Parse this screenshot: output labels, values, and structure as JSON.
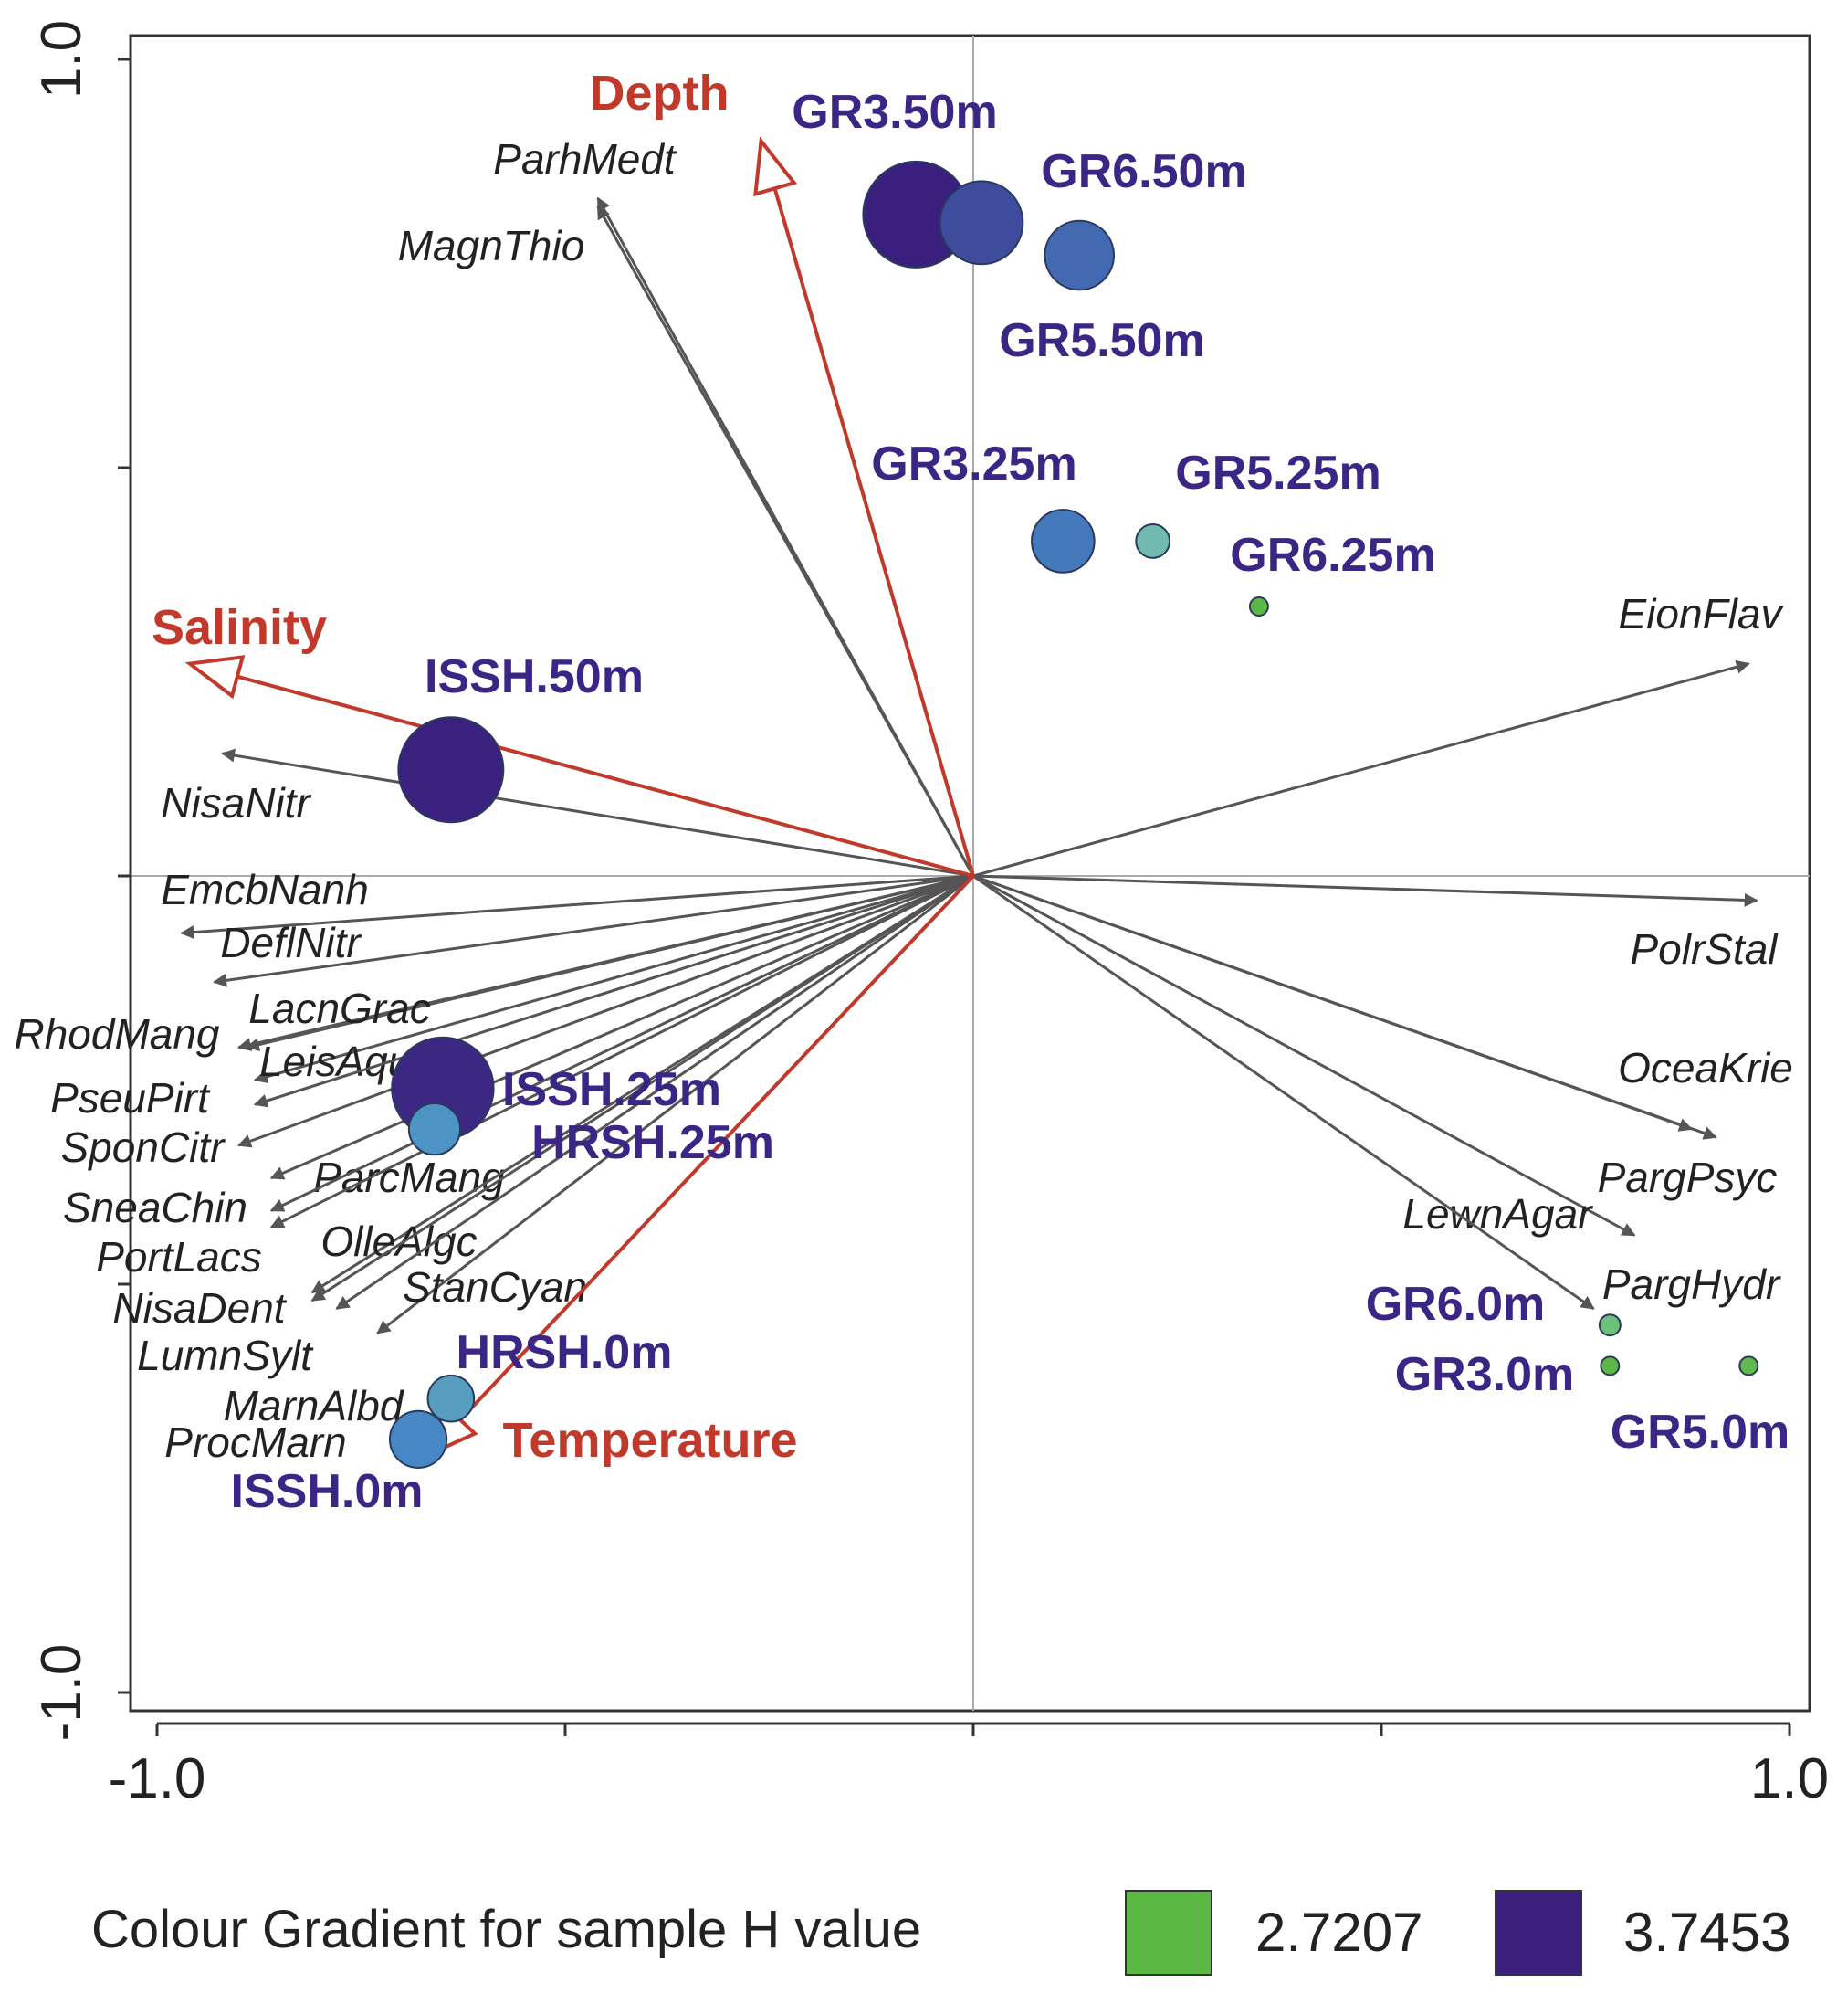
{
  "chart_data": {
    "type": "scatter",
    "subtype": "ordination-biplot",
    "x_ticks": {
      "labels": [
        "-1.0",
        "1.0"
      ],
      "values": [
        -1.0,
        1.0
      ]
    },
    "y_ticks": {
      "labels": [
        "1.0",
        "-1.0"
      ],
      "values": [
        1.0,
        -1.0
      ]
    },
    "xlim": [
      -1.02,
      1.02
    ],
    "ylim": [
      -1.02,
      1.02
    ],
    "env_color": "#c0392b",
    "species_color": "#555555",
    "label_color": "#3b2585",
    "environmental_vectors": [
      {
        "name": "Depth",
        "x": -0.26,
        "y": 0.9
      },
      {
        "name": "Salinity",
        "x": -0.96,
        "y": 0.26
      },
      {
        "name": "Temperature",
        "x": -0.67,
        "y": -0.71
      }
    ],
    "species_vectors": [
      {
        "name": "ParhMedt",
        "x": -0.46,
        "y": 0.83
      },
      {
        "name": "MagnThio",
        "x": -0.46,
        "y": 0.82
      },
      {
        "name": "EionFlav",
        "x": 0.95,
        "y": 0.26
      },
      {
        "name": "NisaNitr",
        "x": -0.92,
        "y": 0.15
      },
      {
        "name": "EmcbNanh",
        "x": -0.97,
        "y": -0.07
      },
      {
        "name": "DeflNitr",
        "x": -0.93,
        "y": -0.13
      },
      {
        "name": "PolrStal",
        "x": 0.96,
        "y": -0.03
      },
      {
        "name": "RhodMang",
        "x": -0.9,
        "y": -0.21
      },
      {
        "name": "LacnGrac",
        "x": -0.89,
        "y": -0.21
      },
      {
        "name": "LeisAqua",
        "x": -0.88,
        "y": -0.25
      },
      {
        "name": "PseuPirt",
        "x": -0.88,
        "y": -0.28
      },
      {
        "name": "SponCitr",
        "x": -0.9,
        "y": -0.33
      },
      {
        "name": "ParcMang",
        "x": -0.86,
        "y": -0.37
      },
      {
        "name": "SneaChin",
        "x": -0.86,
        "y": -0.41
      },
      {
        "name": "PortLacs",
        "x": -0.86,
        "y": -0.43
      },
      {
        "name": "OlleAlgc",
        "x": -0.81,
        "y": -0.51
      },
      {
        "name": "NisaDent",
        "x": -0.81,
        "y": -0.52
      },
      {
        "name": "StanCyan",
        "x": -0.73,
        "y": -0.56
      },
      {
        "name": "LumnSylt",
        "x": -0.78,
        "y": -0.53
      },
      {
        "name": "OceaKrie",
        "x": 0.88,
        "y": -0.31
      },
      {
        "name": "PargPsyc",
        "x": 0.91,
        "y": -0.32
      },
      {
        "name": "LewnAgar",
        "x": 0.81,
        "y": -0.44
      },
      {
        "name": "PargHydr",
        "x": 0.76,
        "y": -0.53
      }
    ],
    "samples": [
      {
        "name": "GR3.50m",
        "x": -0.07,
        "y": 0.81,
        "h": 3.7453
      },
      {
        "name": "GR6.50m",
        "x": 0.01,
        "y": 0.8,
        "h": 3.6
      },
      {
        "name": "GR5.50m",
        "x": 0.13,
        "y": 0.76,
        "h": 3.5
      },
      {
        "name": "GR3.25m",
        "x": 0.11,
        "y": 0.41,
        "h": 3.45
      },
      {
        "name": "GR5.25m",
        "x": 0.22,
        "y": 0.41,
        "h": 3.15
      },
      {
        "name": "GR6.25m",
        "x": 0.35,
        "y": 0.33,
        "h": 2.7207
      },
      {
        "name": "ISSH.50m",
        "x": -0.64,
        "y": 0.13,
        "h": 3.74
      },
      {
        "name": "ISSH.25m",
        "x": -0.65,
        "y": -0.26,
        "h": 3.72
      },
      {
        "name": "HRSH.25m",
        "x": -0.66,
        "y": -0.31,
        "h": 3.35
      },
      {
        "name": "HRSH.0m",
        "x": -0.64,
        "y": -0.64,
        "h": 3.3
      },
      {
        "name": "ISSH.0m",
        "x": -0.68,
        "y": -0.69,
        "h": 3.4
      },
      {
        "name": "GR6.0m",
        "x": 0.78,
        "y": -0.55,
        "h": 2.9
      },
      {
        "name": "GR3.0m",
        "x": 0.78,
        "y": -0.6,
        "h": 2.7207
      },
      {
        "name": "GR5.0m",
        "x": 0.95,
        "y": -0.6,
        "h": 2.75
      }
    ],
    "legend": {
      "title": "Colour Gradient for sample H value",
      "low": {
        "label": "2.7207",
        "color": "#5cb845"
      },
      "high": {
        "label": "3.7453",
        "color": "#3b1f7e"
      }
    }
  }
}
